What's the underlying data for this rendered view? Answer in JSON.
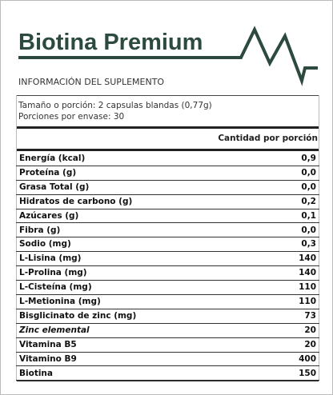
{
  "header": {
    "title": "Biotina Premium",
    "subtitle": "INFORMACIÓN DEL SUPLEMENTO"
  },
  "serving": [
    "Tamaño o porción: 2 capsulas blandas (0,77g)",
    "Porciones por envase: 30"
  ],
  "table": {
    "column_header": "Cantidad por porción",
    "rows": [
      {
        "label": "Energía (kcal)",
        "value": "0,9"
      },
      {
        "label": "Proteína (g)",
        "value": "0,0"
      },
      {
        "label": "Grasa Total (g)",
        "value": "0,0"
      },
      {
        "label": "Hidratos de carbono (g)",
        "value": "0,2"
      },
      {
        "label": "Azúcares (g)",
        "value": "0,1"
      },
      {
        "label": "Fibra (g)",
        "value": "0,0"
      },
      {
        "label": "Sodio (mg)",
        "value": "0,3"
      },
      {
        "label": "L-Lisina (mg)",
        "value": "140"
      },
      {
        "label": "L-Prolina (mg)",
        "value": "140"
      },
      {
        "label": "L-Cisteína (mg)",
        "value": "110"
      },
      {
        "label": "L-Metionina (mg)",
        "value": "110"
      },
      {
        "label": "Bisglicinato de zinc (mg)",
        "value": "73"
      },
      {
        "label": "Zinc elemental",
        "value": "20",
        "italic": true
      },
      {
        "label": "Vitamina B5",
        "value": "20"
      },
      {
        "label": "Vitamino B9",
        "value": "400"
      },
      {
        "label": "Biotina",
        "value": "150"
      }
    ]
  }
}
